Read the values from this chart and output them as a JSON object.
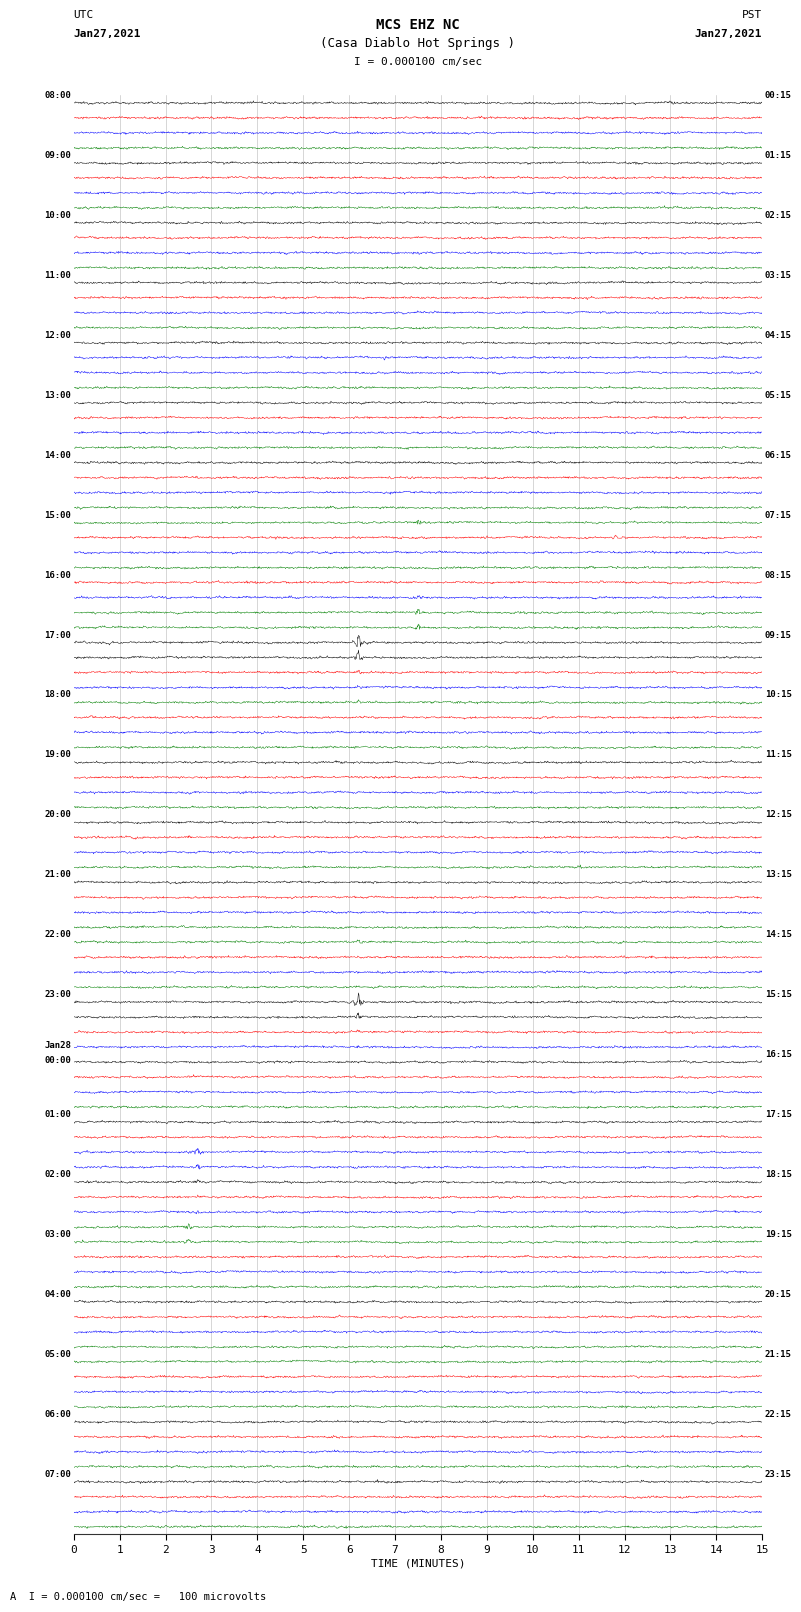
{
  "title_line1": "MCS EHZ NC",
  "title_line2": "(Casa Diablo Hot Springs )",
  "scale_label": "I = 0.000100 cm/sec",
  "footer_label": "A  I = 0.000100 cm/sec =   100 microvolts",
  "utc_label": "UTC",
  "utc_date": "Jan27,2021",
  "pst_label": "PST",
  "pst_date": "Jan27,2021",
  "xlabel": "TIME (MINUTES)",
  "xlim": [
    0,
    15
  ],
  "xticks": [
    0,
    1,
    2,
    3,
    4,
    5,
    6,
    7,
    8,
    9,
    10,
    11,
    12,
    13,
    14,
    15
  ],
  "num_rows": 96,
  "row_colors": [
    "black",
    "red",
    "blue",
    "green"
  ],
  "trace_amplitude": 0.035,
  "bg_color": "#f8f8f8",
  "line_width": 0.35,
  "left_times": [
    "08:00",
    "",
    "",
    "",
    "09:00",
    "",
    "",
    "",
    "10:00",
    "",
    "",
    "",
    "11:00",
    "",
    "",
    "",
    "12:00",
    "",
    "",
    "",
    "13:00",
    "",
    "",
    "",
    "14:00",
    "",
    "",
    "",
    "15:00",
    "",
    "",
    "",
    "16:00",
    "",
    "",
    "",
    "17:00",
    "",
    "",
    "",
    "18:00",
    "",
    "",
    "",
    "19:00",
    "",
    "",
    "",
    "20:00",
    "",
    "",
    "",
    "21:00",
    "",
    "",
    "",
    "22:00",
    "",
    "",
    "",
    "23:00",
    "",
    "",
    "",
    "Jan28\n00:00",
    "",
    "",
    "",
    "01:00",
    "",
    "",
    "",
    "02:00",
    "",
    "",
    "",
    "03:00",
    "",
    "",
    "",
    "04:00",
    "",
    "",
    "",
    "05:00",
    "",
    "",
    "",
    "06:00",
    "",
    "",
    "",
    "07:00",
    "",
    "",
    ""
  ],
  "right_times": [
    "00:15",
    "",
    "",
    "",
    "01:15",
    "",
    "",
    "",
    "02:15",
    "",
    "",
    "",
    "03:15",
    "",
    "",
    "",
    "04:15",
    "",
    "",
    "",
    "05:15",
    "",
    "",
    "",
    "06:15",
    "",
    "",
    "",
    "07:15",
    "",
    "",
    "",
    "08:15",
    "",
    "",
    "",
    "09:15",
    "",
    "",
    "",
    "10:15",
    "",
    "",
    "",
    "11:15",
    "",
    "",
    "",
    "12:15",
    "",
    "",
    "",
    "13:15",
    "",
    "",
    "",
    "14:15",
    "",
    "",
    "",
    "15:15",
    "",
    "",
    "",
    "16:15",
    "",
    "",
    "",
    "17:15",
    "",
    "",
    "",
    "18:15",
    "",
    "",
    "",
    "19:15",
    "",
    "",
    "",
    "20:15",
    "",
    "",
    "",
    "21:15",
    "",
    "",
    "",
    "22:15",
    "",
    "",
    "",
    "23:15",
    "",
    "",
    ""
  ],
  "events": [
    {
      "row": 17,
      "x": 6.8,
      "color": "blue",
      "amp": 3.0
    },
    {
      "row": 28,
      "x": 7.5,
      "color": "green",
      "amp": 6.0
    },
    {
      "row": 29,
      "x": 11.8,
      "color": "red",
      "amp": 5.0
    },
    {
      "row": 32,
      "x": 11.5,
      "color": "red",
      "amp": 4.0
    },
    {
      "row": 33,
      "x": 7.5,
      "color": "blue",
      "amp": 4.0
    },
    {
      "row": 34,
      "x": 7.5,
      "color": "green",
      "amp": 8.0
    },
    {
      "row": 35,
      "x": 7.5,
      "color": "green",
      "amp": 6.0
    },
    {
      "row": 36,
      "x": 6.2,
      "color": "black",
      "amp": 18.0
    },
    {
      "row": 37,
      "x": 6.2,
      "color": "black",
      "amp": 12.0
    },
    {
      "row": 38,
      "x": 6.2,
      "color": "red",
      "amp": 3.0
    },
    {
      "row": 39,
      "x": 6.2,
      "color": "blue",
      "amp": 3.0
    },
    {
      "row": 40,
      "x": 6.2,
      "color": "green",
      "amp": 3.0
    },
    {
      "row": 56,
      "x": 6.2,
      "color": "green",
      "amp": 4.0
    },
    {
      "row": 60,
      "x": 6.2,
      "color": "black",
      "amp": 20.0
    },
    {
      "row": 61,
      "x": 6.2,
      "color": "black",
      "amp": 8.0
    },
    {
      "row": 62,
      "x": 6.2,
      "color": "red",
      "amp": 3.0
    },
    {
      "row": 63,
      "x": 6.2,
      "color": "blue",
      "amp": 3.0
    },
    {
      "row": 70,
      "x": 2.7,
      "color": "blue",
      "amp": 10.0
    },
    {
      "row": 71,
      "x": 2.7,
      "color": "blue",
      "amp": 7.0
    },
    {
      "row": 72,
      "x": 2.7,
      "color": "black",
      "amp": 4.0
    },
    {
      "row": 73,
      "x": 2.7,
      "color": "red",
      "amp": 3.0
    },
    {
      "row": 74,
      "x": 2.7,
      "color": "blue",
      "amp": 3.0
    },
    {
      "row": 75,
      "x": 2.5,
      "color": "green",
      "amp": 8.0
    },
    {
      "row": 76,
      "x": 2.5,
      "color": "green",
      "amp": 5.0
    },
    {
      "row": 84,
      "x": 6.5,
      "color": "green",
      "amp": 3.0
    }
  ]
}
